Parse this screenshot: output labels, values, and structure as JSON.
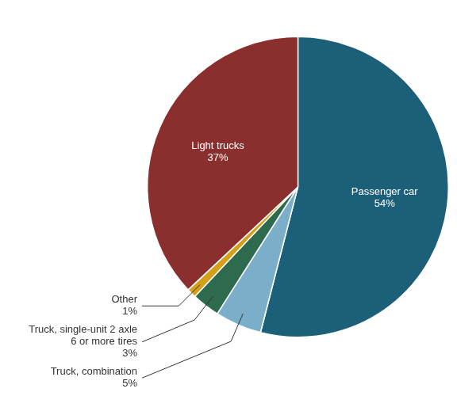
{
  "chart_data": {
    "type": "pie",
    "categories": [
      "Passenger car",
      "Truck, combination",
      "Truck, single-unit 2 axle\n6 or more tires",
      "Other",
      "Light trucks"
    ],
    "values": [
      54,
      5,
      3,
      1,
      37
    ],
    "value_labels": [
      "54%",
      "5%",
      "3%",
      "1%",
      "37%"
    ],
    "colors": [
      "#1c5f78",
      "#7bafc9",
      "#2e6b4e",
      "#d4a017",
      "#8b2e2e"
    ],
    "data_labels": true
  }
}
